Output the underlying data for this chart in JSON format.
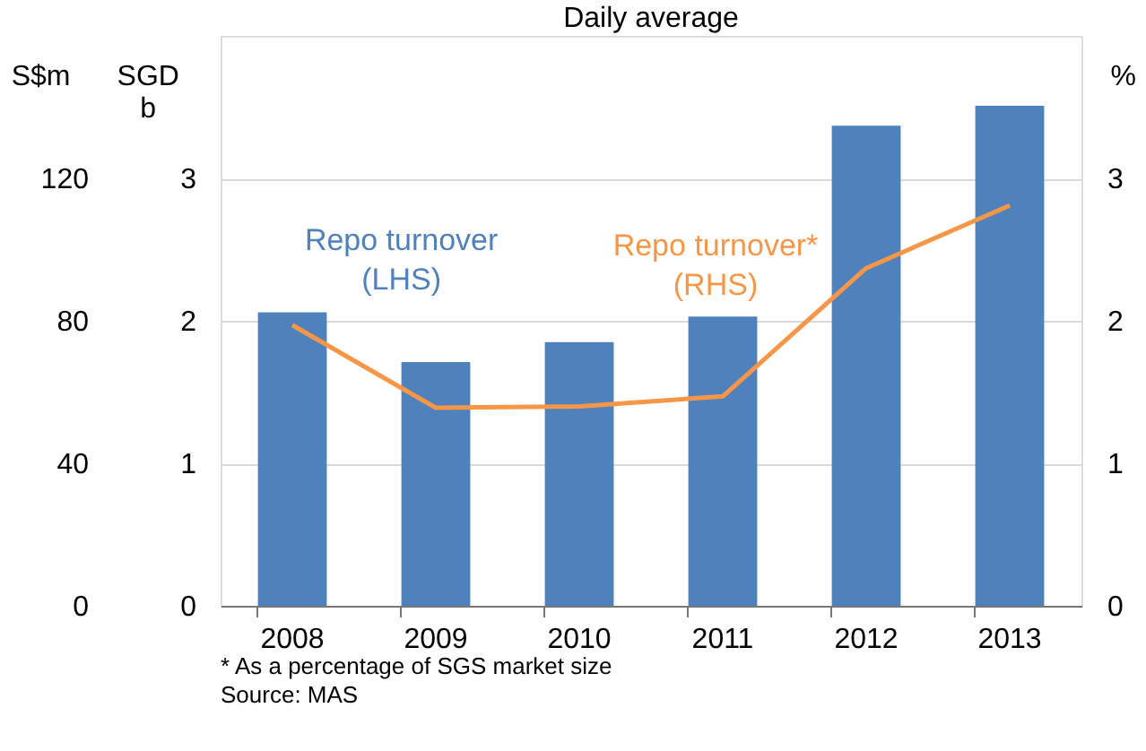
{
  "chart_data": {
    "type": "bar",
    "title": "Daily average",
    "categories": [
      "2008",
      "2009",
      "2010",
      "2011",
      "2012",
      "2013"
    ],
    "series": [
      {
        "name": "Repo turnover (LHS)",
        "color": "#4f81bd",
        "values": [
          2.06,
          1.71,
          1.85,
          2.03,
          3.37,
          3.51
        ]
      },
      {
        "name": "Repo turnover* (RHS)",
        "type": "line",
        "axis": "y2",
        "color": "#f79646",
        "values": [
          1.97,
          1.39,
          1.4,
          1.47,
          2.37,
          2.81
        ]
      }
    ],
    "ylabel": "SGD b",
    "y2label": "%",
    "y3label": "S$m",
    "ylim": [
      0,
      4
    ],
    "yticks": [
      0,
      1,
      2,
      3
    ],
    "y2lim": [
      0,
      4
    ],
    "y2ticks": [
      0,
      1,
      2,
      3
    ],
    "y3lim": [
      0,
      160
    ],
    "y3ticks": [
      0,
      40,
      80,
      120
    ],
    "grid": "y",
    "annotations": [
      "* As a percentage of SGS market size",
      "Source: MAS"
    ]
  }
}
